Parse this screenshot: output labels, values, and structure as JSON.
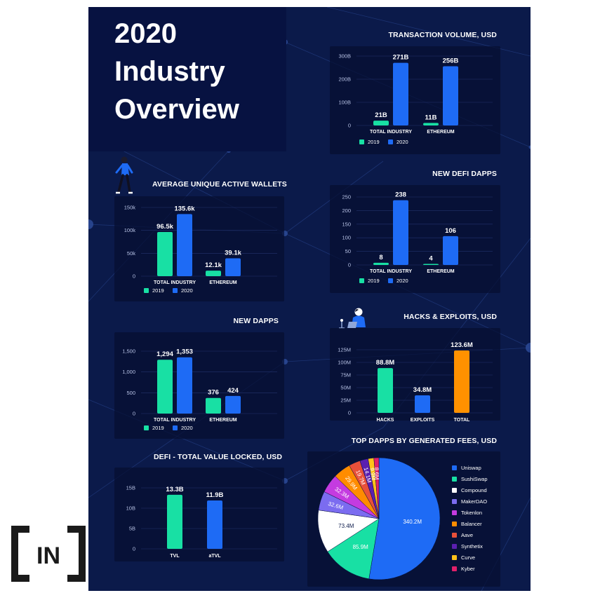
{
  "colors": {
    "y2019": "#18e0a4",
    "y2020": "#1e6bf5",
    "total": "#ff9100",
    "background": "#0b1a4a",
    "panel": "#06113b",
    "grid": "#22336e"
  },
  "title": {
    "line1": "2020",
    "line2": "Industry",
    "line3": "Overview"
  },
  "logo": {
    "text": "IN"
  },
  "chart_data": [
    {
      "id": "tx_volume",
      "type": "bar",
      "title": "TRANSACTION VOLUME, USD",
      "categories": [
        "TOTAL INDUSTRY",
        "ETHEREUM"
      ],
      "series": [
        {
          "name": "2019",
          "values": [
            21,
            11
          ],
          "labels": [
            "21B",
            "11B"
          ]
        },
        {
          "name": "2020",
          "values": [
            271,
            256
          ],
          "labels": [
            "271B",
            "256B"
          ]
        }
      ],
      "yticks": [
        0,
        100,
        200,
        300
      ],
      "ytick_labels": [
        "0",
        "100B",
        "200B",
        "300B"
      ],
      "ylim": [
        0,
        300
      ],
      "legend": [
        "2019",
        "2020"
      ]
    },
    {
      "id": "wallets",
      "type": "bar",
      "title": "AVERAGE UNIQUE ACTIVE WALLETS",
      "categories": [
        "TOTAL INDUSTRY",
        "ETHEREUM"
      ],
      "series": [
        {
          "name": "2019",
          "values": [
            96.5,
            12.1
          ],
          "labels": [
            "96.5k",
            "12.1k"
          ]
        },
        {
          "name": "2020",
          "values": [
            135.6,
            39.1
          ],
          "labels": [
            "135.6k",
            "39.1k"
          ]
        }
      ],
      "yticks": [
        0,
        50,
        100,
        150
      ],
      "ytick_labels": [
        "0",
        "50k",
        "100k",
        "150k"
      ],
      "ylim": [
        0,
        150
      ],
      "legend": [
        "2019",
        "2020"
      ]
    },
    {
      "id": "defi_dapps",
      "type": "bar",
      "title": "NEW DEFI DAPPS",
      "categories": [
        "TOTAL INDUSTRY",
        "ETHEREUM"
      ],
      "series": [
        {
          "name": "2019",
          "values": [
            8,
            4
          ],
          "labels": [
            "8",
            "4"
          ]
        },
        {
          "name": "2020",
          "values": [
            238,
            106
          ],
          "labels": [
            "238",
            "106"
          ]
        }
      ],
      "yticks": [
        0,
        50,
        100,
        150,
        200,
        250
      ],
      "ytick_labels": [
        "0",
        "50",
        "100",
        "150",
        "200",
        "250"
      ],
      "ylim": [
        0,
        250
      ],
      "legend": [
        "2019",
        "2020"
      ]
    },
    {
      "id": "new_dapps",
      "type": "bar",
      "title": "NEW DAPPS",
      "categories": [
        "TOTAL INDUSTRY",
        "ETHEREUM"
      ],
      "series": [
        {
          "name": "2019",
          "values": [
            1294,
            376
          ],
          "labels": [
            "1,294",
            "376"
          ]
        },
        {
          "name": "2020",
          "values": [
            1353,
            424
          ],
          "labels": [
            "1,353",
            "424"
          ]
        }
      ],
      "yticks": [
        0,
        500,
        1000,
        1500
      ],
      "ytick_labels": [
        "0",
        "500",
        "1,000",
        "1,500"
      ],
      "ylim": [
        0,
        1500
      ],
      "legend": [
        "2019",
        "2020"
      ]
    },
    {
      "id": "hacks",
      "type": "bar",
      "title": "HACKS & EXPLOITS, USD",
      "categories": [
        "HACKS",
        "EXPLOITS",
        "TOTAL"
      ],
      "values": [
        88.8,
        34.8,
        123.6
      ],
      "labels": [
        "88.8M",
        "34.8M",
        "123.6M"
      ],
      "bar_colors": [
        "#18e0a4",
        "#1e6bf5",
        "#ff9100"
      ],
      "yticks": [
        0,
        25,
        50,
        75,
        100,
        125
      ],
      "ytick_labels": [
        "0",
        "25M",
        "50M",
        "75M",
        "100M",
        "125M"
      ],
      "ylim": [
        0,
        125
      ]
    },
    {
      "id": "tvl",
      "type": "bar",
      "title": "DEFI - TOTAL VALUE LOCKED, USD",
      "categories": [
        "TVL",
        "aTVL"
      ],
      "values": [
        13.3,
        11.9
      ],
      "labels": [
        "13.3B",
        "11.9B"
      ],
      "bar_colors": [
        "#18e0a4",
        "#1e6bf5"
      ],
      "yticks": [
        0,
        5,
        10,
        15
      ],
      "ytick_labels": [
        "0",
        "5B",
        "10B",
        "15B"
      ],
      "ylim": [
        0,
        15
      ]
    },
    {
      "id": "fees",
      "type": "pie",
      "title": "TOP DAPPS BY GENERATED FEES, USD",
      "slices": [
        {
          "name": "Uniswap",
          "value": 340.2,
          "label": "340.2M",
          "color": "#1e6bf5"
        },
        {
          "name": "SushiSwap",
          "value": 85.9,
          "label": "85.9M",
          "color": "#18e0a4"
        },
        {
          "name": "Compound",
          "value": 73.4,
          "label": "73.4M",
          "color": "#ffffff"
        },
        {
          "name": "MakerDAO",
          "value": 32.6,
          "label": "32.6M",
          "color": "#7b6cf0"
        },
        {
          "name": "Tokenlon",
          "value": 32.3,
          "label": "32.3M",
          "color": "#c43be0"
        },
        {
          "name": "Balancer",
          "value": 29.9,
          "label": "29.9M",
          "color": "#ff8c00"
        },
        {
          "name": "Aave",
          "value": 19.7,
          "label": "19.7M",
          "color": "#e8503a"
        },
        {
          "name": "Synthetix",
          "value": 14.1,
          "label": "14.1M",
          "color": "#5b1fb0"
        },
        {
          "name": "Curve",
          "value": 9.9,
          "label": "9.9M",
          "color": "#ffc21a"
        },
        {
          "name": "Kyber",
          "value": 8.6,
          "label": "8.6M",
          "color": "#e0206a"
        }
      ]
    }
  ]
}
